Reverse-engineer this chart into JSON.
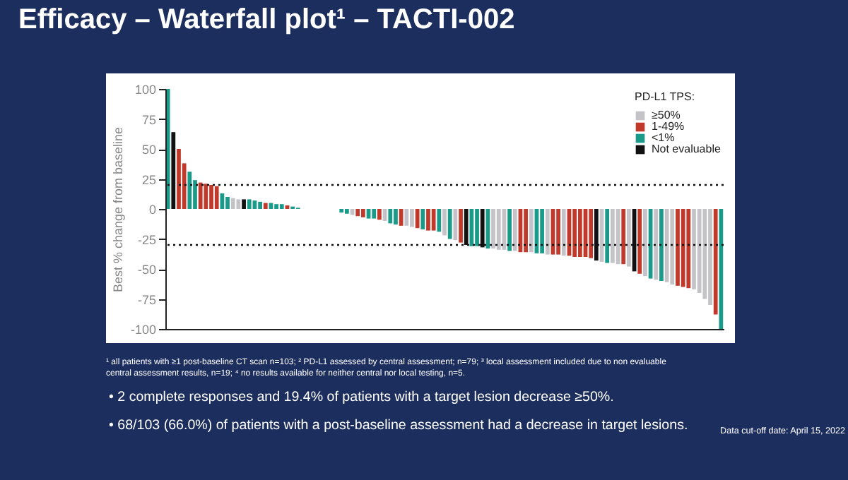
{
  "chart_data": {
    "type": "bar",
    "title": "Efficacy – Waterfall plot¹ – TACTI-002",
    "ylabel": "Best % change from baseline",
    "legend_title": "PD-L1 TPS:",
    "categories": [
      null,
      null,
      null,
      null,
      null,
      null,
      null,
      null,
      null,
      null,
      null,
      null,
      null,
      null,
      null,
      null,
      null,
      null,
      null,
      null,
      null,
      null,
      null,
      null,
      null,
      null,
      null,
      null,
      null,
      null,
      null,
      null,
      null,
      null,
      null,
      null,
      null,
      null,
      null,
      null,
      null,
      null,
      null,
      null,
      null,
      null,
      null,
      null,
      null,
      null,
      null,
      null,
      null,
      null,
      null,
      null,
      null,
      null,
      null,
      null,
      null,
      null,
      null,
      null,
      null,
      null,
      null,
      null,
      null,
      null,
      null,
      null,
      null,
      null,
      null,
      null,
      null,
      null,
      null,
      null,
      null,
      null,
      null,
      null,
      null,
      null,
      null,
      null,
      null,
      null,
      null,
      null,
      null,
      null,
      null,
      null,
      null,
      null,
      null,
      null,
      null,
      null,
      null
    ],
    "series": [
      {
        "name": "≥50%",
        "color": "#c4c4c8",
        "values": [
          null,
          null,
          null,
          null,
          null,
          null,
          null,
          null,
          null,
          null,
          null,
          null,
          9,
          8,
          null,
          null,
          null,
          null,
          null,
          null,
          null,
          null,
          null,
          null,
          null,
          0,
          0,
          0,
          0,
          0,
          0,
          0,
          null,
          null,
          -5,
          null,
          null,
          null,
          null,
          null,
          -10,
          null,
          null,
          null,
          -14,
          -15,
          null,
          null,
          null,
          null,
          null,
          -22,
          null,
          -26,
          null,
          null,
          null,
          null,
          null,
          null,
          -33,
          -34,
          -34,
          null,
          -35,
          null,
          null,
          -36,
          null,
          null,
          -38,
          null,
          null,
          -39,
          null,
          null,
          null,
          null,
          null,
          null,
          -44,
          null,
          -45,
          -46,
          null,
          -48,
          null,
          null,
          -56,
          null,
          -59,
          null,
          -61,
          -63,
          null,
          null,
          null,
          -67,
          -70,
          -75,
          -80,
          null,
          null
        ]
      },
      {
        "name": "1-49%",
        "color": "#c0392b",
        "values": [
          null,
          null,
          50,
          38,
          null,
          null,
          22,
          21,
          20,
          19,
          null,
          null,
          null,
          null,
          null,
          null,
          null,
          null,
          5,
          null,
          null,
          null,
          3,
          null,
          null,
          null,
          null,
          null,
          null,
          null,
          null,
          null,
          null,
          null,
          null,
          -6,
          -7,
          null,
          null,
          -9,
          null,
          null,
          null,
          -14,
          null,
          null,
          -16,
          null,
          -18,
          -18,
          null,
          null,
          null,
          null,
          -28,
          null,
          null,
          null,
          null,
          null,
          null,
          null,
          null,
          null,
          null,
          -36,
          -36,
          null,
          null,
          null,
          null,
          -38,
          -38,
          null,
          -39,
          -40,
          -40,
          -40,
          -41,
          null,
          null,
          null,
          null,
          null,
          -46,
          null,
          null,
          -54,
          null,
          null,
          null,
          null,
          null,
          null,
          -64,
          -65,
          -66,
          null,
          null,
          null,
          null,
          -88,
          null
        ]
      },
      {
        "name": "<1%",
        "color": "#1a9b8a",
        "values": [
          100,
          null,
          null,
          null,
          31,
          24,
          null,
          null,
          null,
          null,
          13,
          10,
          null,
          null,
          null,
          8,
          7,
          6,
          null,
          5,
          4,
          4,
          null,
          2,
          1,
          null,
          null,
          null,
          null,
          null,
          null,
          null,
          -3,
          -4,
          null,
          null,
          null,
          -8,
          -8,
          null,
          null,
          -12,
          -13,
          null,
          null,
          null,
          null,
          -17,
          null,
          null,
          -19,
          null,
          -25,
          null,
          null,
          null,
          -31,
          -31,
          null,
          -33,
          null,
          null,
          null,
          -35,
          null,
          null,
          null,
          null,
          -37,
          -37,
          null,
          null,
          null,
          null,
          null,
          null,
          null,
          null,
          null,
          null,
          null,
          -45,
          null,
          null,
          null,
          null,
          null,
          null,
          null,
          -58,
          null,
          -60,
          null,
          null,
          null,
          null,
          null,
          null,
          null,
          null,
          null,
          null,
          -100
        ]
      },
      {
        "name": "Not evaluable",
        "color": "#111111",
        "values": [
          null,
          64,
          null,
          null,
          null,
          null,
          null,
          null,
          null,
          null,
          null,
          null,
          null,
          null,
          8,
          null,
          null,
          null,
          null,
          null,
          null,
          null,
          null,
          null,
          null,
          null,
          null,
          null,
          null,
          null,
          null,
          null,
          null,
          null,
          null,
          null,
          null,
          null,
          null,
          null,
          null,
          null,
          null,
          null,
          null,
          null,
          null,
          null,
          null,
          null,
          null,
          null,
          null,
          null,
          null,
          -30,
          null,
          null,
          -32,
          null,
          null,
          null,
          null,
          null,
          null,
          null,
          null,
          null,
          null,
          null,
          null,
          null,
          null,
          null,
          null,
          null,
          null,
          null,
          null,
          -43,
          null,
          null,
          null,
          null,
          null,
          null,
          -52,
          null,
          null,
          null,
          null,
          null,
          null,
          null,
          null,
          null,
          null,
          null,
          null,
          null,
          null,
          null,
          null
        ]
      }
    ],
    "ylim": [
      -100,
      100
    ],
    "yticks": [
      -100,
      -75,
      -50,
      -25,
      0,
      25,
      50,
      75,
      100
    ],
    "tick_labels": "y",
    "grid": false,
    "legend": "top right",
    "ref_lines": [
      {
        "axis": "y",
        "value": 20,
        "color": "#111111",
        "line_style": "dotted"
      },
      {
        "axis": "y",
        "value": -30,
        "color": "#111111",
        "line_style": "dotted"
      }
    ],
    "annotations": [
      "¹ all patients with ≥1 post-baseline CT scan n=103; ² PD-L1 assessed by central assessment; n=79; ³ local assessment included due to non evaluable central assessment results, n=19; ⁴ no results available for neither central nor local testing, n=5.",
      "• 2 complete responses and 19.4% of patients with a target lesion decrease ≥50%.",
      "• 68/103 (66.0%) of patients with a post-baseline assessment had a decrease in target lesions.",
      "Data cut-off date: April 15, 2022"
    ]
  }
}
